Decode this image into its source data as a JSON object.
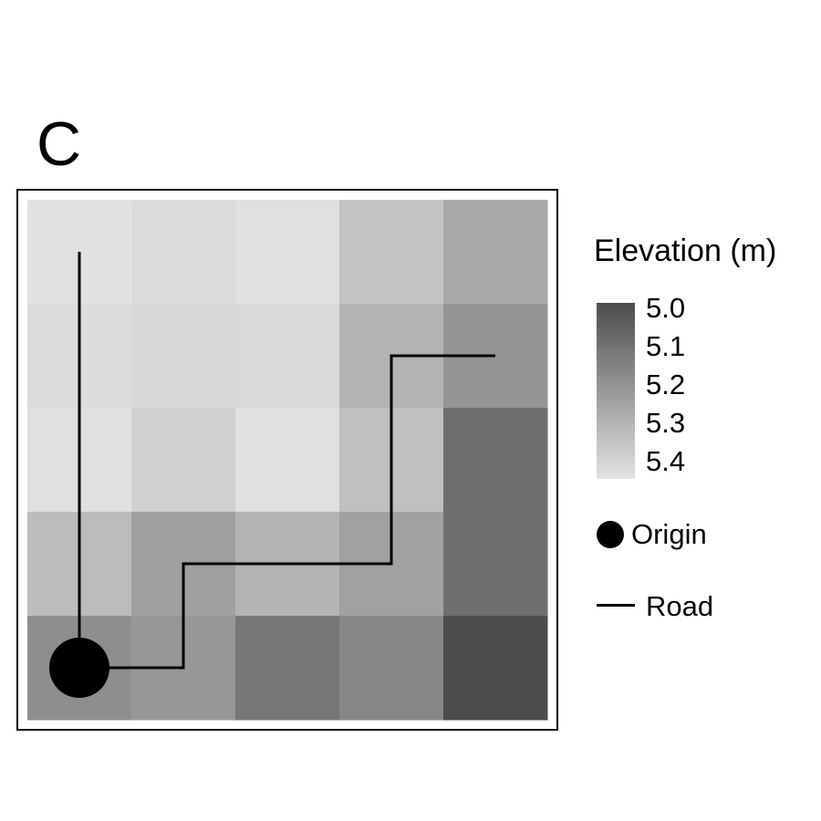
{
  "panel_label": "C",
  "legend": {
    "title": "Elevation (m)",
    "ticks": [
      "5.0",
      "5.1",
      "5.2",
      "5.3",
      "5.4"
    ],
    "origin_label": "Origin",
    "road_label": "Road"
  },
  "colors": {
    "elevation_low": "#4d4d4d",
    "elevation_high": "#e3e3e3",
    "road": "#000000",
    "origin": "#000000"
  },
  "chart_data": {
    "type": "heatmap",
    "rows": 5,
    "cols": 5,
    "cell_values": [
      [
        "#e1e1e1",
        "#dbdbdb",
        "#e0e0e0",
        "#c3c3c3",
        "#a9a9a9"
      ],
      [
        "#dcdcdc",
        "#d8d8d8",
        "#d9d9d9",
        "#b4b4b4",
        "#959595"
      ],
      [
        "#e0e0e0",
        "#d1d1d1",
        "#e0e0e0",
        "#c0c0c0",
        "#6f6f6f"
      ],
      [
        "#bcbcbc",
        "#a0a0a0",
        "#b4b4b4",
        "#a1a1a1",
        "#6f6f6f"
      ],
      [
        "#8e8e8e",
        "#979797",
        "#777777",
        "#878787",
        "#4c4c4c"
      ]
    ],
    "road_path_cells": [
      [
        0.5,
        0.5
      ],
      [
        0.5,
        4.5
      ],
      [
        1.5,
        4.5
      ],
      [
        1.5,
        3.5
      ],
      [
        3.5,
        3.5
      ],
      [
        3.5,
        1.5
      ],
      [
        4.5,
        1.5
      ]
    ],
    "origin_cell": [
      0.5,
      4.5
    ]
  }
}
